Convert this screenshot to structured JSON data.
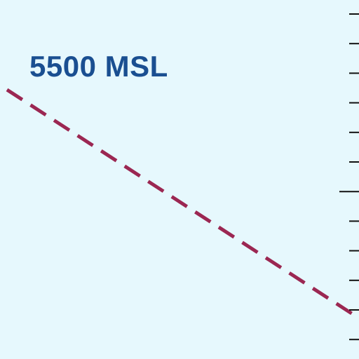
{
  "chart": {
    "altitude_label": "5500 MSL"
  },
  "colors": {
    "background": "#e6f8fd",
    "label": "#1a4f91",
    "route_line": "#9b2752",
    "tick": "#111111"
  },
  "scale": {
    "tick_count": 12,
    "major_tick_indices": [
      6
    ]
  }
}
